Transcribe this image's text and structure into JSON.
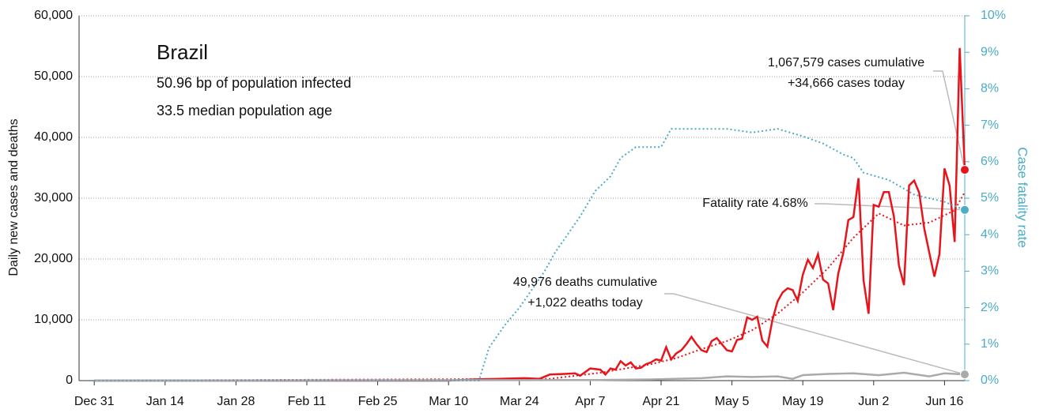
{
  "chart_data": {
    "type": "line",
    "title": "Brazil",
    "subtitle": [
      "50.96 bp of population infected",
      "33.5 median population age"
    ],
    "ylabel": "Daily new cases and deaths",
    "y2label": "Case fatality rate",
    "xlim": [
      -3,
      172
    ],
    "xticks": [
      {
        "value": 0,
        "label": "Dec 31"
      },
      {
        "value": 14,
        "label": "Jan 14"
      },
      {
        "value": 28,
        "label": "Jan 28"
      },
      {
        "value": 42,
        "label": "Feb 11"
      },
      {
        "value": 56,
        "label": "Feb 25"
      },
      {
        "value": 70,
        "label": "Mar 10"
      },
      {
        "value": 84,
        "label": "Mar 24"
      },
      {
        "value": 98,
        "label": "Apr 7"
      },
      {
        "value": 112,
        "label": "Apr 21"
      },
      {
        "value": 126,
        "label": "May 5"
      },
      {
        "value": 140,
        "label": "May 19"
      },
      {
        "value": 154,
        "label": "Jun 2"
      },
      {
        "value": 168,
        "label": "Jun 16"
      }
    ],
    "ylim": [
      0,
      60000
    ],
    "yticks": [
      0,
      {
        "value": 10000,
        "label": "10,000"
      },
      {
        "value": 20000,
        "label": "20,000"
      },
      {
        "value": 30000,
        "label": "30,000"
      },
      {
        "value": 40000,
        "label": "40,000"
      },
      {
        "value": 50000,
        "label": "50,000"
      },
      {
        "value": 60000,
        "label": "60,000"
      }
    ],
    "y2lim": [
      0,
      10
    ],
    "y2ticks": [
      {
        "value": 0,
        "label": "0%"
      },
      {
        "value": 1,
        "label": "1%"
      },
      {
        "value": 2,
        "label": "2%"
      },
      {
        "value": 3,
        "label": "3%"
      },
      {
        "value": 4,
        "label": "4%"
      },
      {
        "value": 5,
        "label": "5%"
      },
      {
        "value": 6,
        "label": "6%"
      },
      {
        "value": 7,
        "label": "7%"
      },
      {
        "value": 8,
        "label": "8%"
      },
      {
        "value": 9,
        "label": "9%"
      },
      {
        "value": 10,
        "label": "10%"
      }
    ],
    "grid": true,
    "series": [
      {
        "color": "#e8141b",
        "dash": false,
        "end_marker": true,
        "x": [
          0,
          70,
          75,
          80,
          85,
          88,
          90,
          93,
          95,
          96,
          98,
          100,
          101,
          102,
          103,
          104,
          105,
          106,
          107,
          108,
          109,
          110,
          111,
          112,
          113,
          114,
          115,
          116,
          117,
          118,
          119,
          120,
          121,
          122,
          123,
          124,
          125,
          126,
          127,
          128,
          129,
          130,
          131,
          132,
          133,
          134,
          135,
          136,
          137,
          138,
          139,
          140,
          141,
          142,
          143,
          144,
          145,
          146,
          147,
          148,
          149,
          150,
          151,
          152,
          153,
          154,
          155,
          156,
          157,
          158,
          159,
          160,
          161,
          162,
          163,
          164,
          165,
          166,
          167,
          168,
          169,
          170,
          171,
          172
        ],
        "values": [
          0,
          0,
          200,
          300,
          400,
          300,
          1000,
          1100,
          1200,
          800,
          2000,
          1800,
          1000,
          2000,
          1800,
          3200,
          2500,
          3000,
          2000,
          2100,
          2700,
          3000,
          3500,
          3300,
          5500,
          3500,
          4500,
          5000,
          6000,
          7200,
          6000,
          5000,
          4700,
          6500,
          7000,
          6000,
          5000,
          4800,
          6700,
          6900,
          10400,
          10000,
          10500,
          6600,
          5600,
          10000,
          13000,
          14500,
          15200,
          14900,
          13100,
          17400,
          19900,
          18500,
          20800,
          16600,
          16000,
          11600,
          17600,
          21000,
          26400,
          26900,
          33300,
          16500,
          11000,
          28900,
          28600,
          31000,
          31000,
          27000,
          18900,
          15700,
          32100,
          32900,
          30900,
          25000,
          21000,
          17100,
          20800,
          34900,
          32100,
          22800,
          54700,
          34666
        ]
      },
      {
        "color": "#e8141b",
        "dash": true,
        "end_marker": false,
        "x": [
          0,
          90,
          100,
          110,
          115,
          120,
          125,
          130,
          135,
          140,
          145,
          150,
          155,
          160,
          165,
          170,
          172
        ],
        "values": [
          0,
          300,
          1300,
          2700,
          3700,
          5200,
          6500,
          8300,
          11000,
          14500,
          18500,
          23500,
          27500,
          25500,
          26000,
          28000,
          31000
        ]
      },
      {
        "color": "#aaaaaa",
        "dash": false,
        "end_marker": true,
        "x": [
          0,
          100,
          110,
          120,
          125,
          130,
          135,
          138,
          140,
          145,
          150,
          155,
          160,
          165,
          168,
          172
        ],
        "values": [
          0,
          100,
          200,
          400,
          700,
          600,
          700,
          300,
          900,
          1100,
          1200,
          900,
          1300,
          700,
          1200,
          1022
        ]
      },
      {
        "color": "#4bacc6",
        "dash": true,
        "end_marker": true,
        "axis": "y2",
        "x": [
          0,
          76,
          78,
          81,
          84,
          89,
          91,
          96,
          99,
          102,
          104,
          107,
          112,
          114,
          125,
          130,
          135,
          140,
          144,
          148,
          150,
          152,
          157,
          162,
          168,
          172
        ],
        "values": [
          0,
          0,
          0.9,
          1.5,
          2,
          3,
          3.5,
          4.5,
          5.2,
          5.6,
          6.1,
          6.4,
          6.4,
          6.9,
          6.9,
          6.8,
          6.9,
          6.7,
          6.5,
          6.2,
          6.1,
          5.7,
          5.5,
          5.1,
          4.9,
          4.68
        ]
      }
    ],
    "annotations": [
      [
        "1,067,579 cases cumulative",
        "+34,666 cases today"
      ],
      [
        "Fatality rate 4.68%"
      ],
      [
        "49,976 deaths cumulative",
        "+1,022 deaths today"
      ]
    ]
  }
}
